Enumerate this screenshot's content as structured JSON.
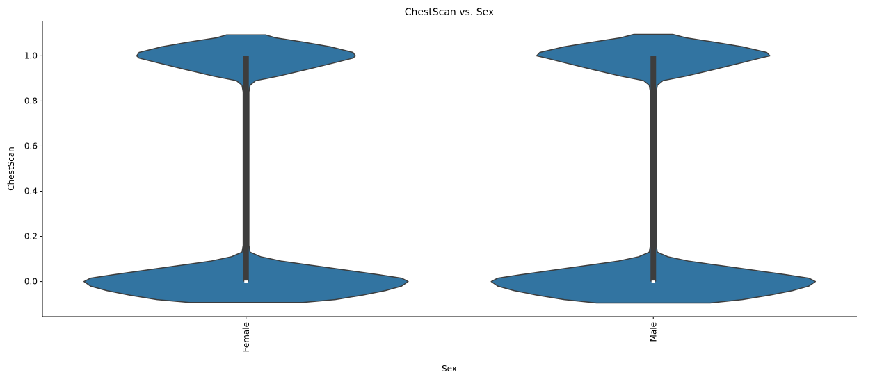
{
  "chart_data": {
    "type": "violin",
    "title": "ChestScan vs. Sex",
    "xlabel": "Sex",
    "ylabel": "ChestScan",
    "categories": [
      "Female",
      "Male"
    ],
    "ylim": [
      -0.155,
      1.155
    ],
    "yticks": [
      "0.0",
      "0.2",
      "0.4",
      "0.6",
      "0.8",
      "1.0"
    ],
    "ytick_values": [
      0,
      0.2,
      0.4,
      0.6,
      0.8,
      1.0
    ],
    "grid": false,
    "colors": {
      "violin": "#3274a1",
      "edge": "#3d3d3d",
      "box": "#3d3d3d",
      "median": "#ffffff"
    },
    "violins": [
      {
        "category": "Female",
        "box": {
          "q1": 0.0,
          "median": 0.0,
          "q3": 1.0,
          "whisker_low": 0.0,
          "whisker_high": 1.0
        },
        "density": [
          [
            -0.093,
            0.35
          ],
          [
            -0.08,
            0.55
          ],
          [
            -0.06,
            0.72
          ],
          [
            -0.04,
            0.86
          ],
          [
            -0.02,
            0.96
          ],
          [
            0.0,
            1.0
          ],
          [
            0.015,
            0.96
          ],
          [
            0.03,
            0.82
          ],
          [
            0.05,
            0.62
          ],
          [
            0.07,
            0.42
          ],
          [
            0.09,
            0.22
          ],
          [
            0.11,
            0.09
          ],
          [
            0.13,
            0.025
          ],
          [
            0.16,
            0.018
          ],
          [
            0.5,
            0.018
          ],
          [
            0.84,
            0.018
          ],
          [
            0.87,
            0.025
          ],
          [
            0.89,
            0.06
          ],
          [
            0.91,
            0.2
          ],
          [
            0.94,
            0.38
          ],
          [
            0.97,
            0.55
          ],
          [
            0.99,
            0.66
          ],
          [
            1.0,
            0.675
          ],
          [
            1.015,
            0.66
          ],
          [
            1.04,
            0.52
          ],
          [
            1.06,
            0.36
          ],
          [
            1.08,
            0.18
          ],
          [
            1.093,
            0.12
          ]
        ]
      },
      {
        "category": "Male",
        "box": {
          "q1": 0.0,
          "median": 0.0,
          "q3": 1.0,
          "whisker_low": 0.0,
          "whisker_high": 1.0
        },
        "density": [
          [
            -0.095,
            0.35
          ],
          [
            -0.08,
            0.55
          ],
          [
            -0.06,
            0.72
          ],
          [
            -0.04,
            0.86
          ],
          [
            -0.02,
            0.96
          ],
          [
            0.0,
            1.0
          ],
          [
            0.015,
            0.96
          ],
          [
            0.03,
            0.82
          ],
          [
            0.05,
            0.62
          ],
          [
            0.07,
            0.42
          ],
          [
            0.09,
            0.22
          ],
          [
            0.11,
            0.09
          ],
          [
            0.13,
            0.025
          ],
          [
            0.16,
            0.018
          ],
          [
            0.5,
            0.018
          ],
          [
            0.84,
            0.018
          ],
          [
            0.87,
            0.025
          ],
          [
            0.89,
            0.06
          ],
          [
            0.91,
            0.2
          ],
          [
            0.94,
            0.38
          ],
          [
            0.97,
            0.55
          ],
          [
            0.99,
            0.66
          ],
          [
            1.0,
            0.72
          ],
          [
            1.015,
            0.7
          ],
          [
            1.04,
            0.55
          ],
          [
            1.06,
            0.38
          ],
          [
            1.08,
            0.2
          ],
          [
            1.095,
            0.12
          ]
        ]
      }
    ]
  }
}
